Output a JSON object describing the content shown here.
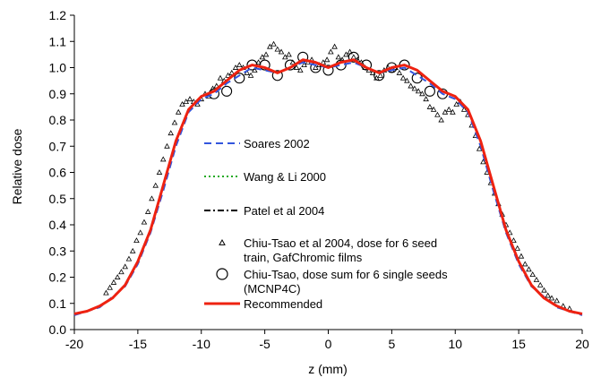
{
  "chart_data": {
    "type": "scatter",
    "title": "",
    "xlabel": "z (mm)",
    "ylabel": "Relative dose",
    "xlim": [
      -20,
      20
    ],
    "ylim": [
      0,
      1.2
    ],
    "grid": false,
    "legend_placement": "center",
    "x_ticks": [
      "-20",
      "-15",
      "-10",
      "-5",
      "0",
      "5",
      "10",
      "15",
      "20"
    ],
    "y_ticks": [
      "0.0",
      "0.1",
      "0.2",
      "0.3",
      "0.4",
      "0.5",
      "0.6",
      "0.7",
      "0.8",
      "0.9",
      "1.0",
      "1.1",
      "1.2"
    ],
    "legend": [
      "Soares 2002",
      "Wang & Li 2000",
      "Patel et al  2004",
      "Chiu-Tsao et al 2004, dose for 6 seed train, GafChromic films",
      "Chiu-Tsao, dose sum for 6 single seeds (MCNP4C)",
      "Recommended"
    ],
    "legend_lines": [
      [
        "Soares 2002"
      ],
      [
        "Wang & Li 2000"
      ],
      [
        "Patel et al  2004"
      ],
      [
        "Chiu-Tsao et al 2004, dose for 6 seed",
        "train, GafChromic films"
      ],
      [
        "Chiu-Tsao, dose sum for 6 single seeds",
        "(MCNP4C)"
      ],
      [
        "Recommended"
      ]
    ],
    "colors": {
      "soares": "#3355dd",
      "wang": "#22aa22",
      "patel": "#000000",
      "recommended": "#ee2211",
      "markers": "#000000"
    },
    "series": [
      {
        "name": "Recommended",
        "x": [
          -20,
          -19,
          -18,
          -17,
          -16,
          -15,
          -14,
          -13,
          -12,
          -11,
          -10,
          -9,
          -8,
          -7,
          -6,
          -5,
          -4,
          -3,
          -2,
          -1,
          0,
          1,
          2,
          3,
          4,
          5,
          6,
          7,
          8,
          9,
          10,
          11,
          12,
          13,
          14,
          15,
          16,
          17,
          18,
          19,
          20
        ],
        "y": [
          0.06,
          0.07,
          0.09,
          0.12,
          0.17,
          0.26,
          0.38,
          0.55,
          0.72,
          0.84,
          0.89,
          0.91,
          0.95,
          0.99,
          1.01,
          1.0,
          0.98,
          1.0,
          1.03,
          1.02,
          1.0,
          1.02,
          1.03,
          1.0,
          0.98,
          1.0,
          1.01,
          0.99,
          0.95,
          0.91,
          0.89,
          0.84,
          0.72,
          0.55,
          0.38,
          0.26,
          0.17,
          0.12,
          0.09,
          0.07,
          0.06
        ]
      },
      {
        "name": "Soares 2002",
        "x": [
          -20,
          -18,
          -16,
          -15,
          -14,
          -13,
          -12,
          -11,
          -10,
          -9,
          -8,
          -6,
          -4,
          -2,
          0,
          2,
          4,
          6,
          8,
          9,
          10,
          11,
          12,
          13,
          14,
          15,
          16,
          18,
          20
        ],
        "y": [
          0.055,
          0.085,
          0.165,
          0.25,
          0.37,
          0.53,
          0.7,
          0.83,
          0.88,
          0.9,
          0.94,
          1.0,
          0.98,
          1.02,
          1.0,
          1.02,
          0.98,
          1.0,
          0.94,
          0.9,
          0.88,
          0.83,
          0.7,
          0.53,
          0.37,
          0.25,
          0.165,
          0.085,
          0.055
        ]
      },
      {
        "name": "Chiu-Tsao, dose sum for 6 single seeds (MCNP4C)",
        "x": [
          -9,
          -8,
          -7,
          -6,
          -5,
          -4,
          -3,
          -2,
          -1,
          0,
          1,
          2,
          3,
          4,
          5,
          6,
          7,
          8,
          9
        ],
        "y": [
          0.9,
          0.91,
          0.96,
          1.01,
          1.01,
          0.97,
          1.01,
          1.04,
          1.0,
          0.99,
          1.01,
          1.04,
          1.01,
          0.97,
          1.0,
          1.01,
          0.96,
          0.91,
          0.9
        ]
      },
      {
        "name": "Chiu-Tsao et al 2004, dose for 6 seed train, GafChromic films",
        "x": [
          -17.5,
          -17.2,
          -16.9,
          -16.6,
          -16.3,
          -16.0,
          -15.7,
          -15.4,
          -15.1,
          -14.8,
          -14.5,
          -14.2,
          -13.9,
          -13.6,
          -13.3,
          -13.0,
          -12.7,
          -12.4,
          -12.1,
          -11.8,
          -11.5,
          -11.2,
          -10.9,
          -10.6,
          -10.3,
          -10.0,
          -9.7,
          -9.4,
          -9.1,
          -8.8,
          -8.5,
          -8.2,
          -7.9,
          -7.6,
          -7.3,
          -7.0,
          -6.7,
          -6.4,
          -6.1,
          -5.8,
          -5.5,
          -5.2,
          -4.9,
          -4.6,
          -4.3,
          -4.0,
          -3.7,
          -3.4,
          -3.1,
          -2.8,
          -2.5,
          -2.2,
          -1.9,
          -1.6,
          -1.3,
          -1.0,
          -0.7,
          -0.4,
          -0.1,
          0.2,
          0.5,
          0.8,
          1.1,
          1.4,
          1.7,
          2.0,
          2.3,
          2.6,
          2.9,
          3.2,
          3.5,
          3.8,
          4.1,
          4.4,
          4.7,
          5.0,
          5.3,
          5.6,
          5.9,
          6.2,
          6.5,
          6.8,
          7.1,
          7.4,
          7.7,
          8.0,
          8.3,
          8.6,
          8.9,
          9.2,
          9.5,
          9.8,
          10.1,
          10.4,
          10.7,
          11.0,
          11.3,
          11.6,
          11.9,
          12.2,
          12.5,
          12.8,
          13.1,
          13.4,
          13.7,
          14.0,
          14.3,
          14.6,
          14.9,
          15.2,
          15.5,
          15.8,
          16.1,
          16.4,
          16.7,
          17.0,
          17.3,
          17.6,
          18.0,
          18.5,
          19.0
        ],
        "y": [
          0.14,
          0.16,
          0.18,
          0.2,
          0.22,
          0.24,
          0.27,
          0.3,
          0.34,
          0.37,
          0.41,
          0.45,
          0.5,
          0.55,
          0.6,
          0.65,
          0.7,
          0.75,
          0.79,
          0.83,
          0.86,
          0.87,
          0.88,
          0.87,
          0.86,
          0.88,
          0.9,
          0.89,
          0.92,
          0.93,
          0.96,
          0.95,
          0.97,
          0.98,
          1.0,
          1.01,
          1.0,
          0.98,
          0.97,
          0.99,
          1.02,
          1.04,
          1.05,
          1.08,
          1.09,
          1.07,
          1.06,
          1.04,
          1.05,
          1.02,
          1.0,
          0.99,
          1.01,
          1.02,
          1.03,
          1.0,
          1.01,
          1.02,
          1.03,
          1.06,
          1.08,
          1.04,
          1.03,
          1.05,
          1.06,
          1.04,
          1.03,
          1.02,
          1.0,
          0.99,
          0.98,
          0.96,
          0.97,
          0.99,
          1.0,
          0.99,
          1.0,
          0.98,
          0.96,
          0.95,
          0.93,
          0.92,
          0.91,
          0.9,
          0.88,
          0.85,
          0.84,
          0.82,
          0.8,
          0.83,
          0.84,
          0.83,
          0.86,
          0.87,
          0.84,
          0.82,
          0.78,
          0.74,
          0.69,
          0.64,
          0.6,
          0.56,
          0.52,
          0.48,
          0.44,
          0.4,
          0.37,
          0.34,
          0.31,
          0.28,
          0.25,
          0.23,
          0.21,
          0.19,
          0.17,
          0.15,
          0.13,
          0.12,
          0.11,
          0.09,
          0.08
        ]
      }
    ]
  }
}
